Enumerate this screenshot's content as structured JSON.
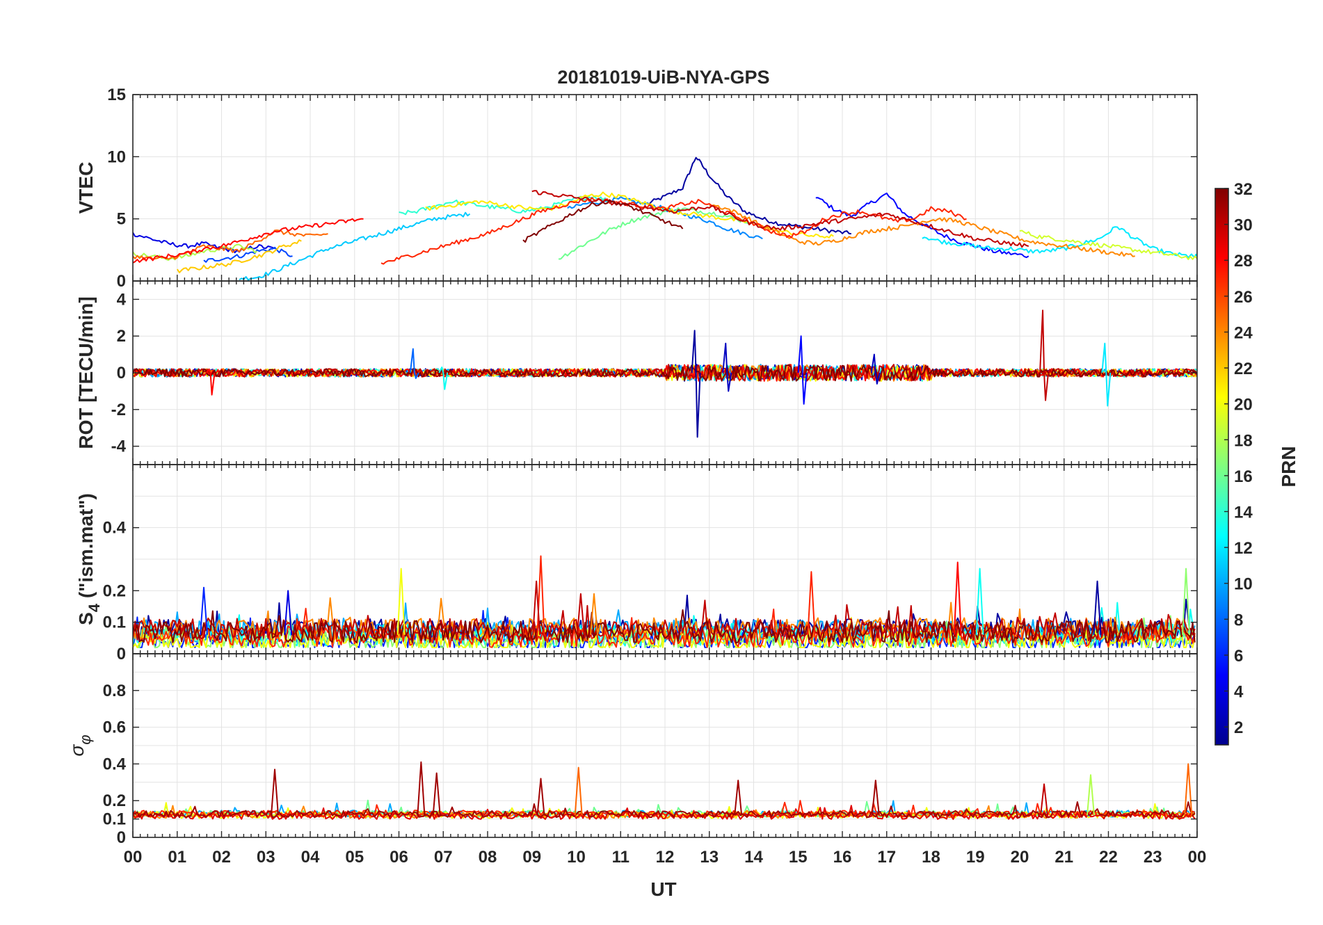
{
  "chart_data": {
    "type": "line",
    "title": "20181019-UiB-NYA-GPS",
    "xlabel": "UT",
    "x_tick_labels": [
      "00",
      "01",
      "02",
      "03",
      "04",
      "05",
      "06",
      "07",
      "08",
      "09",
      "10",
      "11",
      "12",
      "13",
      "14",
      "15",
      "16",
      "17",
      "18",
      "19",
      "20",
      "21",
      "22",
      "23",
      "00"
    ],
    "xlim": [
      0,
      24
    ],
    "colorbar": {
      "label": "PRN",
      "range": [
        1,
        32
      ],
      "tick_labels": [
        "2",
        "4",
        "6",
        "8",
        "10",
        "12",
        "14",
        "16",
        "18",
        "20",
        "22",
        "24",
        "26",
        "28",
        "30",
        "32"
      ],
      "colormap": "jet",
      "colors": [
        "#00008f",
        "#0000ff",
        "#0080ff",
        "#00ffff",
        "#80ff80",
        "#ffff00",
        "#ff8000",
        "#ff0000",
        "#800000"
      ]
    },
    "panels": [
      {
        "ylabel": "VTEC",
        "ylim": [
          0,
          15
        ],
        "y_tick_labels": [
          "0",
          "5",
          "10",
          "15"
        ],
        "series": [
          {
            "prn": 2,
            "x": [
              11.6,
              12.0,
              12.4,
              12.7,
              13.0,
              13.4,
              13.8,
              14.2,
              14.6,
              15.0,
              15.4,
              15.8,
              16.2
            ],
            "y": [
              6.2,
              6.8,
              7.5,
              10.0,
              8.5,
              6.8,
              5.6,
              5.0,
              4.6,
              4.4,
              4.2,
              4.0,
              3.8
            ]
          },
          {
            "prn": 5,
            "x": [
              15.4,
              15.8,
              16.2,
              16.6,
              17.0,
              17.4,
              17.8,
              18.2,
              18.6,
              19.0,
              19.4,
              19.8,
              20.2
            ],
            "y": [
              6.8,
              5.8,
              5.2,
              6.2,
              7.0,
              5.4,
              4.6,
              3.8,
              3.2,
              2.8,
              2.4,
              2.2,
              2.0
            ]
          },
          {
            "prn": 4,
            "x": [
              0.0,
              0.4,
              0.8,
              1.2,
              1.6,
              2.0,
              2.4,
              2.8,
              3.2
            ],
            "y": [
              3.8,
              3.4,
              3.0,
              2.8,
              3.0,
              2.6,
              2.4,
              2.8,
              2.6
            ]
          },
          {
            "prn": 7,
            "x": [
              1.6,
              2.0,
              2.4,
              2.8,
              3.2,
              3.6
            ],
            "y": [
              1.6,
              1.8,
              2.0,
              2.4,
              2.6,
              2.0
            ]
          },
          {
            "prn": 9,
            "x": [
              9.8,
              10.2,
              10.6,
              11.0,
              11.4,
              11.8,
              12.2,
              12.6,
              13.0,
              13.4,
              13.8,
              14.2
            ],
            "y": [
              5.8,
              6.2,
              6.4,
              6.6,
              6.3,
              6.0,
              5.6,
              5.2,
              4.8,
              4.2,
              3.8,
              3.4
            ]
          },
          {
            "prn": 11,
            "x": [
              2.4,
              2.8,
              3.2,
              3.6,
              4.0,
              4.4,
              4.8,
              5.2,
              5.6,
              6.0,
              6.4,
              6.8,
              7.2,
              7.6
            ],
            "y": [
              0.2,
              0.3,
              0.8,
              1.4,
              2.0,
              2.6,
              3.0,
              3.4,
              3.8,
              4.2,
              4.6,
              5.0,
              5.2,
              5.4
            ]
          },
          {
            "prn": 12,
            "x": [
              17.8,
              18.2,
              18.6,
              19.0,
              19.4,
              19.8,
              20.2,
              20.6,
              21.0,
              21.4,
              21.8,
              22.2,
              22.6,
              23.0,
              23.4,
              23.8,
              24.0
            ],
            "y": [
              3.6,
              3.2,
              3.0,
              2.8,
              2.6,
              2.6,
              2.4,
              2.4,
              2.6,
              3.0,
              3.4,
              4.4,
              3.4,
              2.6,
              2.2,
              2.0,
              2.0
            ]
          },
          {
            "prn": 14,
            "x": [
              6.0,
              6.4,
              6.8,
              7.2,
              7.6,
              8.0,
              8.4,
              8.8,
              9.2,
              9.6,
              10.0,
              10.4,
              10.8
            ],
            "y": [
              5.4,
              5.6,
              6.0,
              6.4,
              6.2,
              6.0,
              5.8,
              5.6,
              5.8,
              6.2,
              6.6,
              6.8,
              6.4
            ]
          },
          {
            "prn": 16,
            "x": [
              9.6,
              10.0,
              10.4,
              10.8,
              11.2,
              11.6,
              12.0,
              12.4,
              12.8,
              13.2,
              13.6,
              14.0
            ],
            "y": [
              1.8,
              2.6,
              3.4,
              4.2,
              4.8,
              5.2,
              5.6,
              5.8,
              5.6,
              5.4,
              5.0,
              4.6
            ]
          },
          {
            "prn": 18,
            "x": [
              0.0,
              0.4,
              0.8,
              1.2,
              1.6,
              2.0,
              2.4,
              2.8
            ],
            "y": [
              2.2,
              2.0,
              1.8,
              2.0,
              2.4,
              2.6,
              2.8,
              2.4
            ]
          },
          {
            "prn": 19,
            "x": [
              20.0,
              20.4,
              20.8,
              21.2,
              21.6,
              22.0,
              22.4,
              22.8,
              23.2,
              23.6,
              24.0
            ],
            "y": [
              4.0,
              3.6,
              3.4,
              3.2,
              3.0,
              2.8,
              2.6,
              2.4,
              2.2,
              2.0,
              1.8
            ]
          },
          {
            "prn": 21,
            "x": [
              6.6,
              7.0,
              7.4,
              7.8,
              8.2,
              8.6,
              9.0,
              9.4,
              9.8,
              10.2,
              10.6,
              11.0,
              11.4,
              11.8,
              12.2,
              12.6,
              13.0,
              13.4,
              13.8,
              14.2,
              14.6,
              15.0,
              15.4,
              15.8
            ],
            "y": [
              5.8,
              6.0,
              6.2,
              6.4,
              6.2,
              6.0,
              5.8,
              5.8,
              6.2,
              6.8,
              7.0,
              6.8,
              6.4,
              6.0,
              5.6,
              5.4,
              5.2,
              5.0,
              4.8,
              4.4,
              4.0,
              3.8,
              3.6,
              3.6
            ]
          },
          {
            "prn": 22,
            "x": [
              1.0,
              1.4,
              1.8,
              2.2,
              2.6,
              3.0,
              3.4,
              3.8
            ],
            "y": [
              0.8,
              1.0,
              1.2,
              1.4,
              1.8,
              2.2,
              2.8,
              3.2
            ]
          },
          {
            "prn": 24,
            "x": [
              13.0,
              13.4,
              13.8,
              14.2,
              14.6,
              15.0,
              15.4,
              15.8,
              16.2,
              16.6,
              17.0,
              17.4,
              17.8,
              18.2,
              18.6,
              19.0,
              19.4,
              19.8,
              20.2,
              20.6,
              21.0,
              21.4,
              21.8,
              22.2,
              22.6
            ],
            "y": [
              6.2,
              5.8,
              5.2,
              4.4,
              3.8,
              3.2,
              3.0,
              3.2,
              3.6,
              4.0,
              4.2,
              4.4,
              4.8,
              5.0,
              4.8,
              4.4,
              4.0,
              3.6,
              3.2,
              3.0,
              2.8,
              2.6,
              2.4,
              2.2,
              2.0
            ]
          },
          {
            "prn": 25,
            "x": [
              0.0,
              0.4,
              0.8,
              1.2,
              1.6,
              2.0,
              2.4,
              2.8,
              3.2,
              3.6,
              4.0,
              4.4
            ],
            "y": [
              2.0,
              1.8,
              1.8,
              2.2,
              2.8,
              2.6,
              2.4,
              3.2,
              4.0,
              3.8,
              3.6,
              3.8
            ]
          },
          {
            "prn": 27,
            "x": [
              5.6,
              6.0,
              6.4,
              6.8,
              7.2,
              7.6,
              8.0,
              8.4,
              8.8,
              9.2,
              9.6,
              10.0,
              10.4,
              10.8,
              11.2,
              11.6,
              12.0,
              12.4,
              12.8,
              13.2,
              13.6,
              14.0,
              14.4,
              14.8,
              15.2,
              15.6,
              16.0,
              16.4,
              16.8,
              17.2,
              17.6,
              18.0,
              18.4,
              18.8
            ],
            "y": [
              1.4,
              1.8,
              2.2,
              2.6,
              3.0,
              3.4,
              3.8,
              4.4,
              5.0,
              5.6,
              6.0,
              6.4,
              6.6,
              6.4,
              6.2,
              6.0,
              5.8,
              6.2,
              6.4,
              5.8,
              5.2,
              4.6,
              4.0,
              3.6,
              4.0,
              5.0,
              5.4,
              5.6,
              5.2,
              4.8,
              5.0,
              5.8,
              5.6,
              5.0
            ]
          },
          {
            "prn": 28,
            "x": [
              0.0,
              0.4,
              0.8,
              1.2,
              1.6,
              2.0,
              2.4,
              2.8,
              3.2,
              3.6,
              4.0,
              4.4,
              4.8,
              5.2
            ],
            "y": [
              1.6,
              1.8,
              2.0,
              2.2,
              2.6,
              2.8,
              3.2,
              3.6,
              4.0,
              4.2,
              4.4,
              4.6,
              4.8,
              5.0
            ]
          },
          {
            "prn": 30,
            "x": [
              9.0,
              9.4,
              9.8,
              10.2,
              10.6,
              11.0,
              11.4,
              11.8,
              12.2,
              12.6,
              13.0,
              13.4,
              13.8,
              14.2,
              14.6,
              15.0,
              15.4,
              15.8,
              16.2,
              16.6,
              17.0,
              17.4,
              17.8,
              18.2,
              18.6,
              19.0,
              19.4,
              19.8,
              20.2
            ],
            "y": [
              7.2,
              7.0,
              6.8,
              6.6,
              6.4,
              6.2,
              6.0,
              5.8,
              5.6,
              5.8,
              6.0,
              5.4,
              4.8,
              4.4,
              4.2,
              4.4,
              4.6,
              4.8,
              5.0,
              5.2,
              5.4,
              5.0,
              4.6,
              4.2,
              3.8,
              3.4,
              3.2,
              3.0,
              2.8
            ]
          },
          {
            "prn": 32,
            "x": [
              8.8,
              9.2,
              9.6,
              10.0,
              10.4,
              10.8,
              11.2,
              11.6,
              12.0,
              12.4
            ],
            "y": [
              3.2,
              4.0,
              4.8,
              5.6,
              6.2,
              6.4,
              6.0,
              5.4,
              4.8,
              4.2
            ]
          }
        ]
      },
      {
        "ylabel": "ROT [TECU/min]",
        "ylim": [
          -5,
          5
        ],
        "y_tick_labels": [
          "-4",
          "-2",
          "0",
          "2",
          "4"
        ],
        "spikes": [
          {
            "prn": 2,
            "x": 12.7,
            "y_min": -3.5,
            "y_max": 2.3
          },
          {
            "prn": 5,
            "x": 15.1,
            "y_min": -1.7,
            "y_max": 2.0
          },
          {
            "prn": 30,
            "x": 20.55,
            "y_min": -1.5,
            "y_max": 3.4
          },
          {
            "prn": 12,
            "x": 21.95,
            "y_min": -1.8,
            "y_max": 1.6
          },
          {
            "prn": 28,
            "x": 1.75,
            "y_min": -1.2,
            "y_max": 0.2
          },
          {
            "prn": 8,
            "x": 6.35,
            "y_min": -0.3,
            "y_max": 1.3
          },
          {
            "prn": 13,
            "x": 7.0,
            "y_min": -0.9,
            "y_max": 0.3
          },
          {
            "prn": 3,
            "x": 13.4,
            "y_min": -1.0,
            "y_max": 1.6
          },
          {
            "prn": 3,
            "x": 16.75,
            "y_min": -0.6,
            "y_max": 1.0
          }
        ]
      },
      {
        "ylabel": "S4 (\"ism.mat\")",
        "ylabel_main": "S",
        "ylabel_sub": "4",
        "ylabel_rest": " (\"ism.mat\")",
        "ylim": [
          0,
          0.6
        ],
        "y_tick_labels": [
          "0",
          "0.1",
          "0.2",
          "0.4"
        ],
        "peaks": [
          {
            "prn": 20,
            "x": 6.05,
            "y": 0.27
          },
          {
            "prn": 27,
            "x": 9.2,
            "y": 0.31
          },
          {
            "prn": 30,
            "x": 9.1,
            "y": 0.23
          },
          {
            "prn": 30,
            "x": 10.1,
            "y": 0.19
          },
          {
            "prn": 24,
            "x": 10.4,
            "y": 0.19
          },
          {
            "prn": 27,
            "x": 15.3,
            "y": 0.26
          },
          {
            "prn": 28,
            "x": 18.6,
            "y": 0.29
          },
          {
            "prn": 13,
            "x": 19.1,
            "y": 0.27
          },
          {
            "prn": 2,
            "x": 21.75,
            "y": 0.23
          },
          {
            "prn": 17,
            "x": 23.75,
            "y": 0.27
          },
          {
            "prn": 6,
            "x": 1.6,
            "y": 0.21
          },
          {
            "prn": 4,
            "x": 3.5,
            "y": 0.2
          }
        ]
      },
      {
        "ylabel": "σ φ",
        "ylabel_main": "σ",
        "ylabel_sub": "φ",
        "ylim": [
          0,
          1
        ],
        "y_tick_labels": [
          "0",
          "0.1",
          "0.2",
          "0.4",
          "0.6",
          "0.8"
        ],
        "peaks": [
          {
            "prn": 31,
            "x": 3.2,
            "y": 0.37
          },
          {
            "prn": 31,
            "x": 6.5,
            "y": 0.41
          },
          {
            "prn": 31,
            "x": 6.85,
            "y": 0.35
          },
          {
            "prn": 31,
            "x": 9.2,
            "y": 0.32
          },
          {
            "prn": 25,
            "x": 10.05,
            "y": 0.38
          },
          {
            "prn": 31,
            "x": 13.65,
            "y": 0.31
          },
          {
            "prn": 31,
            "x": 16.75,
            "y": 0.31
          },
          {
            "prn": 30,
            "x": 20.55,
            "y": 0.29
          },
          {
            "prn": 18,
            "x": 21.6,
            "y": 0.34
          },
          {
            "prn": 25,
            "x": 23.8,
            "y": 0.4
          }
        ]
      }
    ]
  }
}
